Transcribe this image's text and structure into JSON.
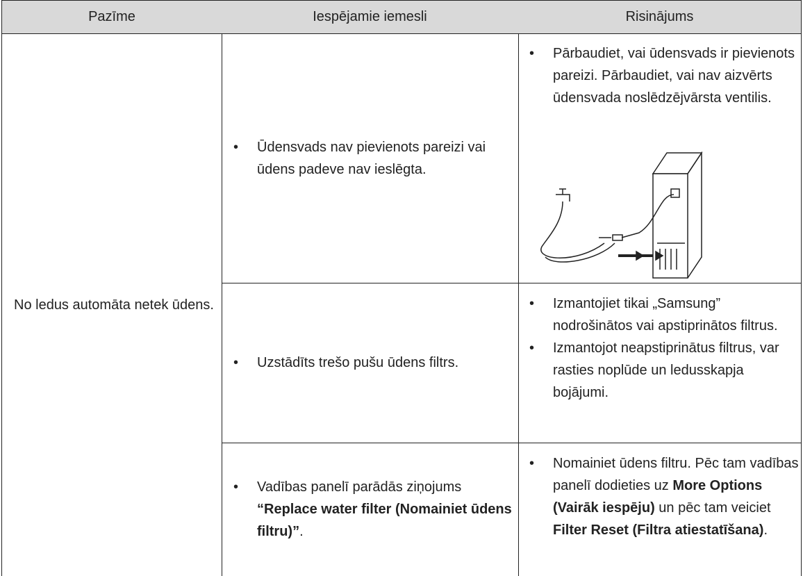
{
  "table": {
    "headers": [
      "Pazīme",
      "Iespējamie iemesli",
      "Risinājums"
    ],
    "symptom": "No ledus automāta netek ūdens.",
    "rows": [
      {
        "causes": [
          [
            {
              "text": "Ūdensvads nav pievienots pareizi vai ūdens padeve nav ieslēgta.",
              "bold": false
            }
          ]
        ],
        "solutions": [
          [
            {
              "text": "Pārbaudiet, vai ūdensvads ir pievienots pareizi. Pārbaudiet, vai nav aizvērts ūdensvada noslēdzējvārsta ventilis.",
              "bold": false
            }
          ]
        ]
      },
      {
        "causes": [
          [
            {
              "text": "Uzstādīts trešo pušu ūdens filtrs.",
              "bold": false
            }
          ]
        ],
        "solutions": [
          [
            {
              "text": "Izmantojiet tikai „Samsung” nodrošinātos vai apstiprinātos filtrus.",
              "bold": false
            }
          ],
          [
            {
              "text": "Izmantojot neapstiprinātus filtrus, var rasties noplūde un ledusskapja bojājumi.",
              "bold": false
            }
          ]
        ]
      },
      {
        "causes": [
          [
            {
              "text": "Vadības panelī parādās ziņojums ",
              "bold": false
            },
            {
              "text": "“Replace water filter (Nomainiet ūdens filtru)”",
              "bold": true
            },
            {
              "text": ".",
              "bold": false
            }
          ]
        ],
        "solutions": [
          [
            {
              "text": "Nomainiet ūdens filtru. Pēc tam vadības panelī dodieties uz ",
              "bold": false
            },
            {
              "text": "More Options (Vairāk iespēju)",
              "bold": true
            },
            {
              "text": " un pēc tam veiciet ",
              "bold": false
            },
            {
              "text": "Filter Reset (Filtra atiestatīšana)",
              "bold": true
            },
            {
              "text": ".",
              "bold": false
            }
          ]
        ]
      }
    ]
  }
}
